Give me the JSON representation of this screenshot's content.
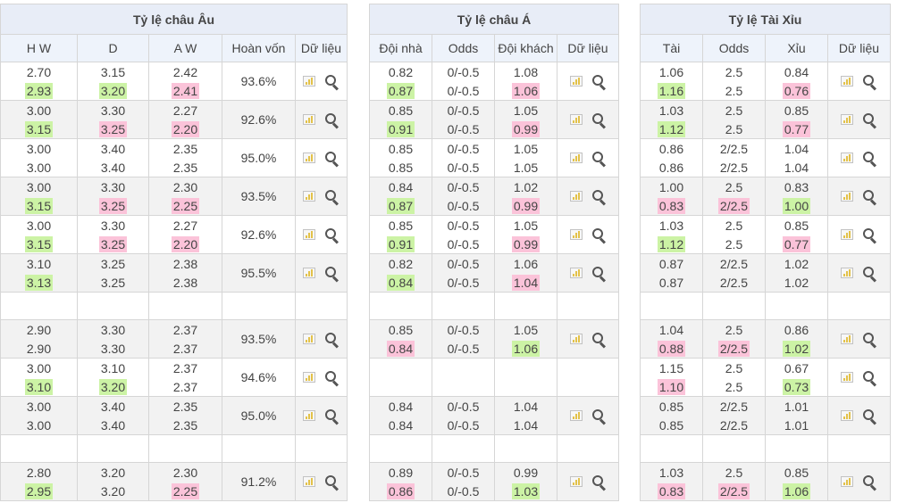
{
  "europe": {
    "title": "Tỷ lệ châu Âu",
    "headers": [
      "H W",
      "D",
      "A W",
      "Hoàn vốn",
      "Dữ liệu"
    ],
    "rows": [
      {
        "hw": [
          "2.70",
          "2.93"
        ],
        "hwc": [
          "",
          "g"
        ],
        "d": [
          "3.15",
          "3.20"
        ],
        "dc": [
          "",
          "g"
        ],
        "aw": [
          "2.42",
          "2.41"
        ],
        "awc": [
          "",
          "p"
        ],
        "ret": "93.6%"
      },
      {
        "hw": [
          "3.00",
          "3.15"
        ],
        "hwc": [
          "",
          "g"
        ],
        "d": [
          "3.30",
          "3.25"
        ],
        "dc": [
          "",
          "p"
        ],
        "aw": [
          "2.27",
          "2.20"
        ],
        "awc": [
          "",
          "p"
        ],
        "ret": "92.6%"
      },
      {
        "hw": [
          "3.00",
          "3.00"
        ],
        "hwc": [
          "",
          ""
        ],
        "d": [
          "3.40",
          "3.40"
        ],
        "dc": [
          "",
          ""
        ],
        "aw": [
          "2.35",
          "2.35"
        ],
        "awc": [
          "",
          ""
        ],
        "ret": "95.0%"
      },
      {
        "hw": [
          "3.00",
          "3.15"
        ],
        "hwc": [
          "",
          "g"
        ],
        "d": [
          "3.30",
          "3.25"
        ],
        "dc": [
          "",
          "p"
        ],
        "aw": [
          "2.30",
          "2.25"
        ],
        "awc": [
          "",
          "p"
        ],
        "ret": "93.5%"
      },
      {
        "hw": [
          "3.00",
          "3.15"
        ],
        "hwc": [
          "",
          "g"
        ],
        "d": [
          "3.30",
          "3.25"
        ],
        "dc": [
          "",
          "p"
        ],
        "aw": [
          "2.27",
          "2.20"
        ],
        "awc": [
          "",
          "p"
        ],
        "ret": "92.6%"
      },
      {
        "hw": [
          "3.10",
          "3.13"
        ],
        "hwc": [
          "",
          "g"
        ],
        "d": [
          "3.25",
          "3.25"
        ],
        "dc": [
          "",
          ""
        ],
        "aw": [
          "2.38",
          "2.38"
        ],
        "awc": [
          "",
          ""
        ],
        "ret": "95.5%"
      },
      null,
      {
        "hw": [
          "2.90",
          "2.90"
        ],
        "hwc": [
          "",
          ""
        ],
        "d": [
          "3.30",
          "3.30"
        ],
        "dc": [
          "",
          ""
        ],
        "aw": [
          "2.37",
          "2.37"
        ],
        "awc": [
          "",
          ""
        ],
        "ret": "93.5%"
      },
      {
        "hw": [
          "3.00",
          "3.10"
        ],
        "hwc": [
          "",
          "g"
        ],
        "d": [
          "3.10",
          "3.20"
        ],
        "dc": [
          "",
          "g"
        ],
        "aw": [
          "2.37",
          "2.37"
        ],
        "awc": [
          "",
          ""
        ],
        "ret": "94.6%"
      },
      {
        "hw": [
          "3.00",
          "3.00"
        ],
        "hwc": [
          "",
          ""
        ],
        "d": [
          "3.40",
          "3.40"
        ],
        "dc": [
          "",
          ""
        ],
        "aw": [
          "2.35",
          "2.35"
        ],
        "awc": [
          "",
          ""
        ],
        "ret": "95.0%"
      },
      null,
      {
        "hw": [
          "2.80",
          "2.95"
        ],
        "hwc": [
          "",
          "g"
        ],
        "d": [
          "3.20",
          "3.20"
        ],
        "dc": [
          "",
          ""
        ],
        "aw": [
          "2.30",
          "2.25"
        ],
        "awc": [
          "",
          "p"
        ],
        "ret": "91.2%"
      }
    ]
  },
  "asia": {
    "title": "Tỷ lệ châu Á",
    "headers": [
      "Đội nhà",
      "Odds",
      "Đội khách",
      "Dữ liệu"
    ],
    "rows": [
      {
        "home": [
          "0.82",
          "0.87"
        ],
        "hc": [
          "",
          "g"
        ],
        "odds": [
          "0/-0.5",
          "0/-0.5"
        ],
        "oc": [
          "",
          ""
        ],
        "away": [
          "1.08",
          "1.06"
        ],
        "ac": [
          "",
          "p"
        ]
      },
      {
        "home": [
          "0.85",
          "0.91"
        ],
        "hc": [
          "",
          "g"
        ],
        "odds": [
          "0/-0.5",
          "0/-0.5"
        ],
        "oc": [
          "",
          ""
        ],
        "away": [
          "1.05",
          "0.99"
        ],
        "ac": [
          "",
          "p"
        ]
      },
      {
        "home": [
          "0.85",
          "0.85"
        ],
        "hc": [
          "",
          ""
        ],
        "odds": [
          "0/-0.5",
          "0/-0.5"
        ],
        "oc": [
          "",
          ""
        ],
        "away": [
          "1.05",
          "1.05"
        ],
        "ac": [
          "",
          ""
        ]
      },
      {
        "home": [
          "0.84",
          "0.87"
        ],
        "hc": [
          "",
          "g"
        ],
        "odds": [
          "0/-0.5",
          "0/-0.5"
        ],
        "oc": [
          "",
          ""
        ],
        "away": [
          "1.02",
          "0.99"
        ],
        "ac": [
          "",
          "p"
        ]
      },
      {
        "home": [
          "0.85",
          "0.91"
        ],
        "hc": [
          "",
          "g"
        ],
        "odds": [
          "0/-0.5",
          "0/-0.5"
        ],
        "oc": [
          "",
          ""
        ],
        "away": [
          "1.05",
          "0.99"
        ],
        "ac": [
          "",
          "p"
        ]
      },
      {
        "home": [
          "0.82",
          "0.84"
        ],
        "hc": [
          "",
          "g"
        ],
        "odds": [
          "0/-0.5",
          "0/-0.5"
        ],
        "oc": [
          "",
          ""
        ],
        "away": [
          "1.06",
          "1.04"
        ],
        "ac": [
          "",
          "p"
        ]
      },
      null,
      {
        "home": [
          "0.85",
          "0.84"
        ],
        "hc": [
          "",
          "p"
        ],
        "odds": [
          "0/-0.5",
          "0/-0.5"
        ],
        "oc": [
          "",
          ""
        ],
        "away": [
          "1.05",
          "1.06"
        ],
        "ac": [
          "",
          "g"
        ]
      },
      "empty",
      {
        "home": [
          "0.84",
          "0.84"
        ],
        "hc": [
          "",
          ""
        ],
        "odds": [
          "0/-0.5",
          "0/-0.5"
        ],
        "oc": [
          "",
          ""
        ],
        "away": [
          "1.04",
          "1.04"
        ],
        "ac": [
          "",
          ""
        ]
      },
      null,
      {
        "home": [
          "0.89",
          "0.86"
        ],
        "hc": [
          "",
          "p"
        ],
        "odds": [
          "0/-0.5",
          "0/-0.5"
        ],
        "oc": [
          "",
          ""
        ],
        "away": [
          "0.99",
          "1.03"
        ],
        "ac": [
          "",
          "g"
        ]
      }
    ]
  },
  "overunder": {
    "title": "Tỷ lệ Tài Xỉu",
    "headers": [
      "Tài",
      "Odds",
      "Xỉu",
      "Dữ liệu"
    ],
    "rows": [
      {
        "over": [
          "1.06",
          "1.16"
        ],
        "ovc": [
          "",
          "g"
        ],
        "odds": [
          "2.5",
          "2.5"
        ],
        "oc": [
          "",
          ""
        ],
        "under": [
          "0.84",
          "0.76"
        ],
        "uc": [
          "",
          "p"
        ]
      },
      {
        "over": [
          "1.03",
          "1.12"
        ],
        "ovc": [
          "",
          "g"
        ],
        "odds": [
          "2.5",
          "2.5"
        ],
        "oc": [
          "",
          ""
        ],
        "under": [
          "0.85",
          "0.77"
        ],
        "uc": [
          "",
          "p"
        ]
      },
      {
        "over": [
          "0.86",
          "0.86"
        ],
        "ovc": [
          "",
          ""
        ],
        "odds": [
          "2/2.5",
          "2/2.5"
        ],
        "oc": [
          "",
          ""
        ],
        "under": [
          "1.04",
          "1.04"
        ],
        "uc": [
          "",
          ""
        ]
      },
      {
        "over": [
          "1.00",
          "0.83"
        ],
        "ovc": [
          "",
          "p"
        ],
        "odds": [
          "2.5",
          "2/2.5"
        ],
        "oc": [
          "",
          "p"
        ],
        "under": [
          "0.83",
          "1.00"
        ],
        "uc": [
          "",
          "g"
        ]
      },
      {
        "over": [
          "1.03",
          "1.12"
        ],
        "ovc": [
          "",
          "g"
        ],
        "odds": [
          "2.5",
          "2.5"
        ],
        "oc": [
          "",
          ""
        ],
        "under": [
          "0.85",
          "0.77"
        ],
        "uc": [
          "",
          "p"
        ]
      },
      {
        "over": [
          "0.87",
          "0.87"
        ],
        "ovc": [
          "",
          ""
        ],
        "odds": [
          "2/2.5",
          "2/2.5"
        ],
        "oc": [
          "",
          ""
        ],
        "under": [
          "1.02",
          "1.02"
        ],
        "uc": [
          "",
          ""
        ]
      },
      null,
      {
        "over": [
          "1.04",
          "0.88"
        ],
        "ovc": [
          "",
          "p"
        ],
        "odds": [
          "2.5",
          "2/2.5"
        ],
        "oc": [
          "",
          "p"
        ],
        "under": [
          "0.86",
          "1.02"
        ],
        "uc": [
          "",
          "g"
        ]
      },
      {
        "over": [
          "1.15",
          "1.10"
        ],
        "ovc": [
          "",
          "p"
        ],
        "odds": [
          "2.5",
          "2.5"
        ],
        "oc": [
          "",
          ""
        ],
        "under": [
          "0.67",
          "0.73"
        ],
        "uc": [
          "",
          "g"
        ]
      },
      {
        "over": [
          "0.85",
          "0.85"
        ],
        "ovc": [
          "",
          ""
        ],
        "odds": [
          "2/2.5",
          "2/2.5"
        ],
        "oc": [
          "",
          ""
        ],
        "under": [
          "1.01",
          "1.01"
        ],
        "uc": [
          "",
          ""
        ]
      },
      null,
      {
        "over": [
          "1.03",
          "0.83"
        ],
        "ovc": [
          "",
          "p"
        ],
        "odds": [
          "2.5",
          "2/2.5"
        ],
        "oc": [
          "",
          "p"
        ],
        "under": [
          "0.85",
          "1.06"
        ],
        "uc": [
          "",
          "g"
        ]
      }
    ]
  },
  "icons": {
    "chart": "bar-chart-icon",
    "detail": "magnifier-icon"
  },
  "colors": {
    "up": "#ccf3a5",
    "down": "#fbc3d9",
    "header": "#e8edf7",
    "alt_row": "#f2f2f2"
  }
}
